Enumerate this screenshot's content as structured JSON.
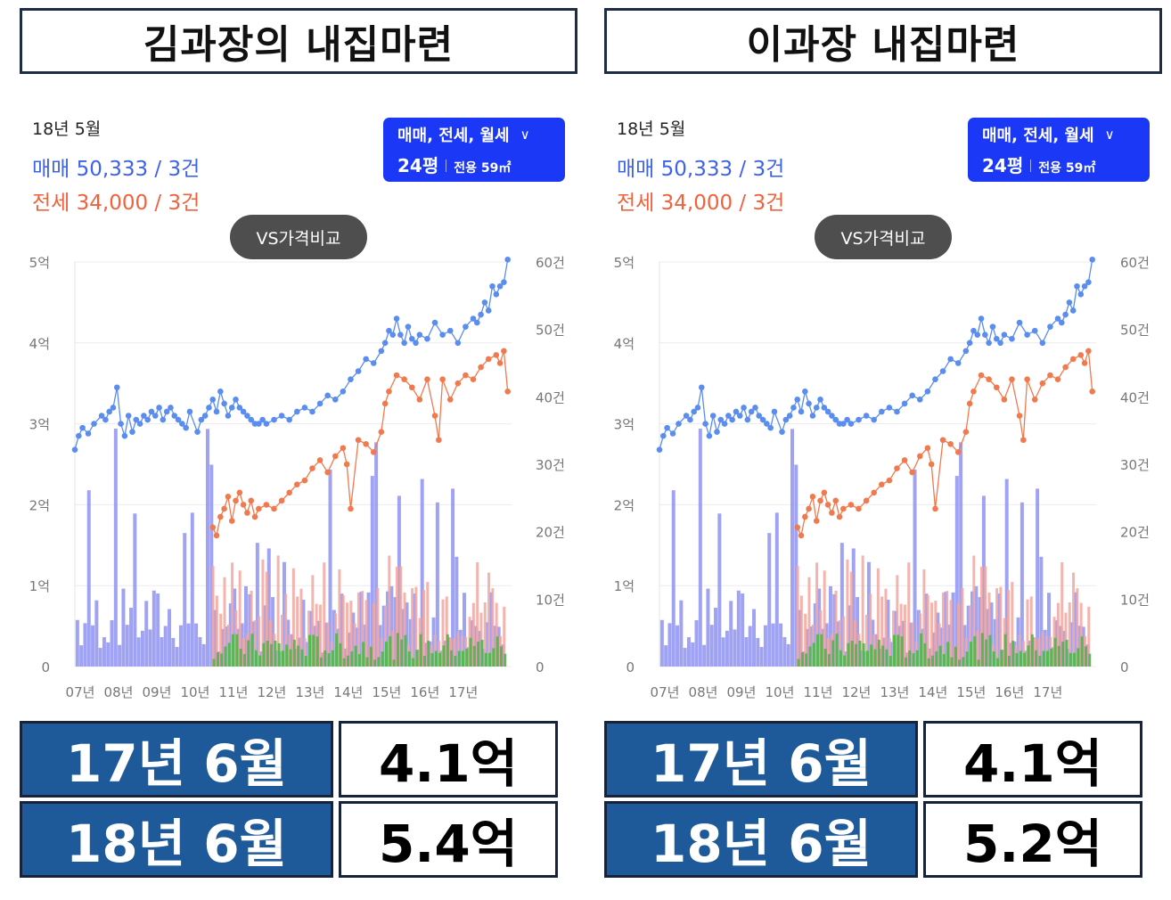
{
  "panels": [
    {
      "title": "김과장의 내집마련",
      "period": "18년 5월",
      "sale_summary": "매매 50,333 / 3건",
      "jeonse_summary": "전세 34,000 / 3건",
      "filter": {
        "label": "매매, 전세, 월세",
        "pyeong": "24평",
        "area": "전용 59㎡"
      },
      "vs_label": "VS가격비교",
      "stats": [
        {
          "label": "17년 6월",
          "value": "4.1억"
        },
        {
          "label": "18년 6월",
          "value": "5.4억"
        }
      ]
    },
    {
      "title": "이과장 내집마련",
      "period": "18년 5월",
      "sale_summary": "매매 50,333 / 3건",
      "jeonse_summary": "전세 34,000 / 3건",
      "filter": {
        "label": "매매, 전세, 월세",
        "pyeong": "24평",
        "area": "전용 59㎡"
      },
      "vs_label": "VS가격비교",
      "stats": [
        {
          "label": "17년 6월",
          "value": "4.1억"
        },
        {
          "label": "18년 6월",
          "value": "5.2억"
        }
      ]
    }
  ],
  "colors": {
    "sale": "#5b8def",
    "jeonse": "#f07a4e",
    "vol_sale": "#8f93f2",
    "vol_jeonse": "#f2a7a0",
    "vol_wolse": "#4db847",
    "stat_bg": "#1e5a99"
  },
  "chart_data": [
    {
      "type": "line",
      "x_ticks": [
        "07년",
        "08년",
        "09년",
        "10년",
        "11년",
        "12년",
        "13년",
        "14년",
        "15년",
        "16년",
        "17년"
      ],
      "y_left_ticks": [
        "0",
        "1억",
        "2억",
        "3억",
        "4억",
        "5억"
      ],
      "y_right_ticks": [
        "0",
        "10건",
        "20건",
        "30건",
        "40건",
        "50건",
        "60건"
      ],
      "ylim_price": [
        0,
        5
      ],
      "ylim_count": [
        0,
        60
      ],
      "xlim": [
        2007.0,
        2018.4
      ],
      "series": [
        {
          "name": "매매",
          "x": [
            2007.0,
            2007.1,
            2007.2,
            2007.35,
            2007.5,
            2007.7,
            2007.8,
            2007.9,
            2008.0,
            2008.1,
            2008.2,
            2008.3,
            2008.4,
            2008.5,
            2008.6,
            2008.7,
            2008.8,
            2008.9,
            2009.0,
            2009.1,
            2009.2,
            2009.3,
            2009.4,
            2009.5,
            2009.6,
            2009.7,
            2009.8,
            2009.9,
            2010.0,
            2010.2,
            2010.3,
            2010.4,
            2010.5,
            2010.6,
            2010.7,
            2010.8,
            2010.9,
            2011.0,
            2011.1,
            2011.2,
            2011.3,
            2011.4,
            2011.5,
            2011.6,
            2011.7,
            2011.8,
            2011.9,
            2012.0,
            2012.2,
            2012.4,
            2012.6,
            2012.8,
            2013.0,
            2013.2,
            2013.4,
            2013.6,
            2013.8,
            2014.0,
            2014.2,
            2014.4,
            2014.6,
            2014.8,
            2015.0,
            2015.1,
            2015.2,
            2015.3,
            2015.4,
            2015.5,
            2015.6,
            2015.7,
            2015.8,
            2015.9,
            2016.0,
            2016.2,
            2016.4,
            2016.6,
            2016.8,
            2017.0,
            2017.2,
            2017.4,
            2017.5,
            2017.6,
            2017.7,
            2017.8,
            2017.9,
            2018.0,
            2018.1,
            2018.2,
            2018.3
          ],
          "y": [
            2.68,
            2.85,
            2.95,
            2.88,
            3.0,
            3.1,
            3.05,
            3.15,
            3.2,
            3.45,
            3.0,
            2.85,
            3.1,
            2.9,
            3.05,
            3.0,
            3.1,
            3.05,
            3.15,
            3.1,
            3.2,
            3.05,
            3.15,
            3.2,
            3.1,
            3.05,
            3.0,
            2.95,
            3.15,
            2.9,
            3.05,
            3.1,
            3.2,
            3.3,
            3.15,
            3.4,
            3.25,
            3.1,
            3.2,
            3.3,
            3.2,
            3.15,
            3.1,
            3.05,
            3.0,
            3.0,
            3.05,
            3.0,
            3.05,
            3.1,
            3.05,
            3.15,
            3.2,
            3.15,
            3.25,
            3.35,
            3.3,
            3.4,
            3.55,
            3.65,
            3.8,
            3.75,
            3.9,
            4.0,
            4.15,
            4.1,
            4.3,
            4.1,
            4.0,
            4.2,
            4.05,
            4.0,
            4.1,
            4.05,
            4.25,
            4.1,
            4.15,
            4.0,
            4.2,
            4.3,
            4.25,
            4.35,
            4.5,
            4.4,
            4.7,
            4.6,
            4.7,
            4.75,
            5.03
          ]
        },
        {
          "name": "전세",
          "x": [
            2010.6,
            2010.7,
            2010.8,
            2010.9,
            2011.0,
            2011.1,
            2011.2,
            2011.3,
            2011.4,
            2011.5,
            2011.6,
            2011.7,
            2011.8,
            2012.0,
            2012.2,
            2012.4,
            2012.6,
            2012.8,
            2013.0,
            2013.2,
            2013.4,
            2013.6,
            2013.8,
            2014.0,
            2014.1,
            2014.2,
            2014.4,
            2014.6,
            2014.8,
            2015.0,
            2015.1,
            2015.2,
            2015.4,
            2015.6,
            2015.8,
            2016.0,
            2016.2,
            2016.4,
            2016.5,
            2016.6,
            2016.8,
            2017.0,
            2017.2,
            2017.4,
            2017.6,
            2017.8,
            2018.0,
            2018.1,
            2018.2,
            2018.3
          ],
          "y": [
            1.72,
            1.62,
            1.85,
            1.95,
            2.1,
            1.8,
            2.05,
            2.15,
            2.0,
            1.9,
            2.05,
            1.85,
            1.95,
            2.0,
            1.95,
            2.05,
            2.15,
            2.25,
            2.3,
            2.45,
            2.55,
            2.4,
            2.6,
            2.7,
            2.5,
            1.95,
            2.8,
            2.75,
            2.65,
            2.9,
            3.25,
            3.4,
            3.6,
            3.55,
            3.45,
            3.3,
            3.55,
            3.1,
            2.8,
            3.55,
            3.3,
            3.5,
            3.6,
            3.55,
            3.7,
            3.8,
            3.85,
            3.75,
            3.9,
            3.4
          ]
        }
      ]
    },
    {
      "type": "line",
      "x_ticks": [
        "07년",
        "08년",
        "09년",
        "10년",
        "11년",
        "12년",
        "13년",
        "14년",
        "15년",
        "16년",
        "17년"
      ],
      "y_left_ticks": [
        "0",
        "1억",
        "2억",
        "3억",
        "4억",
        "5억"
      ],
      "y_right_ticks": [
        "0",
        "10건",
        "20건",
        "30건",
        "40건",
        "50건",
        "60건"
      ],
      "ylim_price": [
        0,
        5
      ],
      "ylim_count": [
        0,
        60
      ],
      "xlim": [
        2007.0,
        2018.4
      ],
      "series": [
        {
          "name": "매매",
          "x": [
            2007.0,
            2007.1,
            2007.2,
            2007.35,
            2007.5,
            2007.7,
            2007.8,
            2007.9,
            2008.0,
            2008.1,
            2008.2,
            2008.3,
            2008.4,
            2008.5,
            2008.6,
            2008.7,
            2008.8,
            2008.9,
            2009.0,
            2009.1,
            2009.2,
            2009.3,
            2009.4,
            2009.5,
            2009.6,
            2009.7,
            2009.8,
            2009.9,
            2010.0,
            2010.2,
            2010.3,
            2010.4,
            2010.5,
            2010.6,
            2010.7,
            2010.8,
            2010.9,
            2011.0,
            2011.1,
            2011.2,
            2011.3,
            2011.4,
            2011.5,
            2011.6,
            2011.7,
            2011.8,
            2011.9,
            2012.0,
            2012.2,
            2012.4,
            2012.6,
            2012.8,
            2013.0,
            2013.2,
            2013.4,
            2013.6,
            2013.8,
            2014.0,
            2014.2,
            2014.4,
            2014.6,
            2014.8,
            2015.0,
            2015.1,
            2015.2,
            2015.3,
            2015.4,
            2015.5,
            2015.6,
            2015.7,
            2015.8,
            2015.9,
            2016.0,
            2016.2,
            2016.4,
            2016.6,
            2016.8,
            2017.0,
            2017.2,
            2017.4,
            2017.5,
            2017.6,
            2017.7,
            2017.8,
            2017.9,
            2018.0,
            2018.1,
            2018.2,
            2018.3
          ],
          "y": [
            2.68,
            2.85,
            2.95,
            2.88,
            3.0,
            3.1,
            3.05,
            3.15,
            3.2,
            3.45,
            3.0,
            2.85,
            3.1,
            2.9,
            3.05,
            3.0,
            3.1,
            3.05,
            3.15,
            3.1,
            3.2,
            3.05,
            3.15,
            3.2,
            3.1,
            3.05,
            3.0,
            2.95,
            3.15,
            2.9,
            3.05,
            3.1,
            3.2,
            3.3,
            3.15,
            3.4,
            3.25,
            3.1,
            3.2,
            3.3,
            3.2,
            3.15,
            3.1,
            3.05,
            3.0,
            3.0,
            3.05,
            3.0,
            3.05,
            3.1,
            3.05,
            3.15,
            3.2,
            3.15,
            3.25,
            3.35,
            3.3,
            3.4,
            3.55,
            3.65,
            3.8,
            3.75,
            3.9,
            4.0,
            4.15,
            4.1,
            4.3,
            4.1,
            4.0,
            4.2,
            4.05,
            4.0,
            4.1,
            4.05,
            4.25,
            4.1,
            4.15,
            4.0,
            4.2,
            4.3,
            4.25,
            4.35,
            4.5,
            4.4,
            4.7,
            4.6,
            4.7,
            4.75,
            5.03
          ]
        },
        {
          "name": "전세",
          "x": [
            2010.6,
            2010.7,
            2010.8,
            2010.9,
            2011.0,
            2011.1,
            2011.2,
            2011.3,
            2011.4,
            2011.5,
            2011.6,
            2011.7,
            2011.8,
            2012.0,
            2012.2,
            2012.4,
            2012.6,
            2012.8,
            2013.0,
            2013.2,
            2013.4,
            2013.6,
            2013.8,
            2014.0,
            2014.1,
            2014.2,
            2014.4,
            2014.6,
            2014.8,
            2015.0,
            2015.1,
            2015.2,
            2015.4,
            2015.6,
            2015.8,
            2016.0,
            2016.2,
            2016.4,
            2016.5,
            2016.6,
            2016.8,
            2017.0,
            2017.2,
            2017.4,
            2017.6,
            2017.8,
            2018.0,
            2018.1,
            2018.2,
            2018.3
          ],
          "y": [
            1.72,
            1.62,
            1.85,
            1.95,
            2.1,
            1.8,
            2.05,
            2.15,
            2.0,
            1.9,
            2.05,
            1.85,
            1.95,
            2.0,
            1.95,
            2.05,
            2.15,
            2.25,
            2.3,
            2.45,
            2.55,
            2.4,
            2.6,
            2.7,
            2.5,
            1.95,
            2.8,
            2.75,
            2.65,
            2.9,
            3.25,
            3.4,
            3.6,
            3.55,
            3.45,
            3.3,
            3.55,
            3.1,
            2.8,
            3.55,
            3.3,
            3.5,
            3.6,
            3.55,
            3.7,
            3.8,
            3.85,
            3.75,
            3.9,
            3.4
          ]
        }
      ]
    }
  ]
}
